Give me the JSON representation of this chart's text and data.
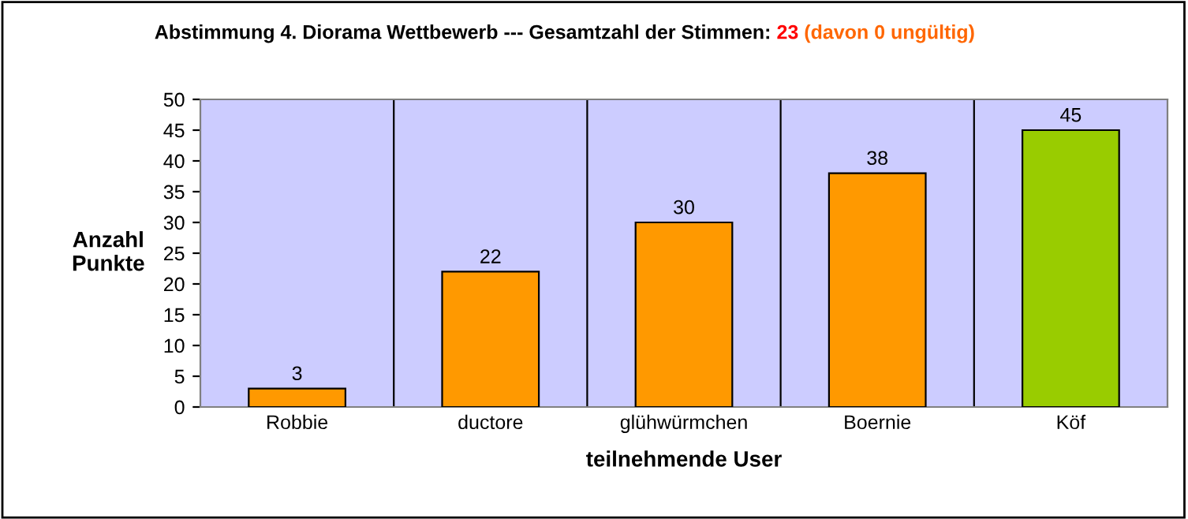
{
  "chart_data": {
    "type": "bar",
    "title": "Abstimmung 4. Diorama Wettbewerb --- Gesamtzahl der Stimmen:",
    "annotations": [
      "23",
      "(davon 0 ungültig)"
    ],
    "xlabel": "teilnehmende User",
    "ylabel": "Anzahl\nPunkte",
    "categories": [
      "Robbie",
      "ductore",
      "glühwürmchen",
      "Boernie",
      "Köf"
    ],
    "values": [
      3,
      22,
      30,
      38,
      45
    ],
    "colors": [
      "#ff9900",
      "#ff9900",
      "#ff9900",
      "#ff9900",
      "#99cc00"
    ],
    "ylim": [
      0,
      50
    ],
    "yticks": [
      0,
      5,
      10,
      15,
      20,
      25,
      30,
      35,
      40,
      45,
      50
    ],
    "grid": "x",
    "data_labels": true
  }
}
